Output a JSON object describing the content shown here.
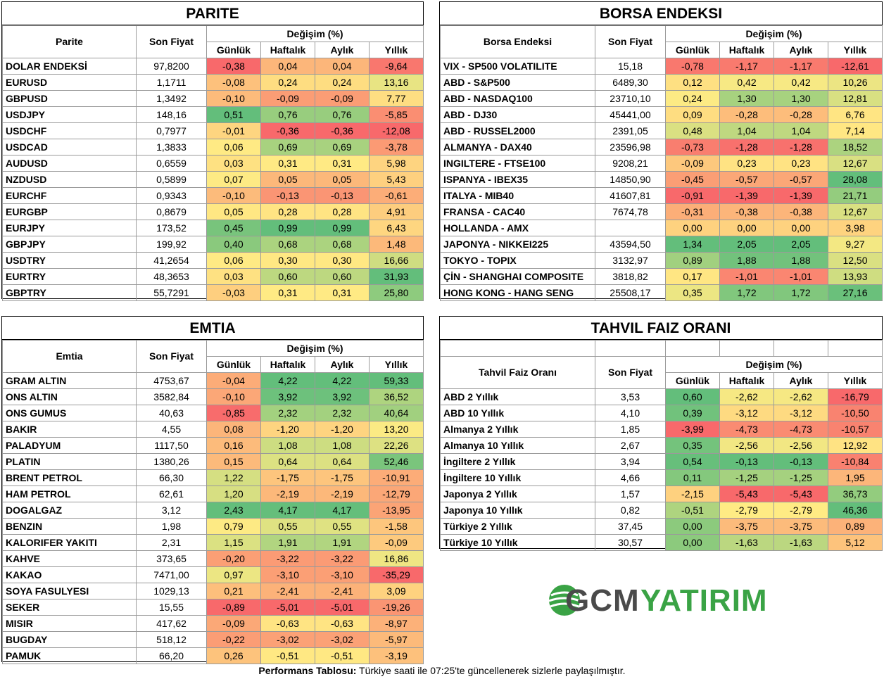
{
  "headers": {
    "son_fiyat": "Son Fiyat",
    "degisim": "Değişim (%)",
    "gunluk": "Günlük",
    "haftalik": "Haftalık",
    "aylik": "Aylık",
    "yillik": "Yıllık"
  },
  "parite": {
    "title": "PARITE",
    "col": "Parite",
    "rows": [
      {
        "n": "DOLAR ENDEKSİ",
        "p": "97,8200",
        "d": "-0,38",
        "w": "0,04",
        "m": "0,04",
        "y": "-9,64"
      },
      {
        "n": "EURUSD",
        "p": "1,1711",
        "d": "-0,08",
        "w": "0,24",
        "m": "0,24",
        "y": "13,16"
      },
      {
        "n": "GBPUSD",
        "p": "1,3492",
        "d": "-0,10",
        "w": "-0,09",
        "m": "-0,09",
        "y": "7,77"
      },
      {
        "n": "USDJPY",
        "p": "148,16",
        "d": "0,51",
        "w": "0,76",
        "m": "0,76",
        "y": "-5,85"
      },
      {
        "n": "USDCHF",
        "p": "0,7977",
        "d": "-0,01",
        "w": "-0,36",
        "m": "-0,36",
        "y": "-12,08"
      },
      {
        "n": "USDCAD",
        "p": "1,3833",
        "d": "0,06",
        "w": "0,69",
        "m": "0,69",
        "y": "-3,78"
      },
      {
        "n": "AUDUSD",
        "p": "0,6559",
        "d": "0,03",
        "w": "0,31",
        "m": "0,31",
        "y": "5,98"
      },
      {
        "n": "NZDUSD",
        "p": "0,5899",
        "d": "0,07",
        "w": "0,05",
        "m": "0,05",
        "y": "5,43"
      },
      {
        "n": "EURCHF",
        "p": "0,9343",
        "d": "-0,10",
        "w": "-0,13",
        "m": "-0,13",
        "y": "-0,61"
      },
      {
        "n": "EURGBP",
        "p": "0,8679",
        "d": "0,05",
        "w": "0,28",
        "m": "0,28",
        "y": "4,91"
      },
      {
        "n": "EURJPY",
        "p": "173,52",
        "d": "0,45",
        "w": "0,99",
        "m": "0,99",
        "y": "6,43"
      },
      {
        "n": "GBPJPY",
        "p": "199,92",
        "d": "0,40",
        "w": "0,68",
        "m": "0,68",
        "y": "1,48"
      },
      {
        "n": "USDTRY",
        "p": "41,2654",
        "d": "0,06",
        "w": "0,30",
        "m": "0,30",
        "y": "16,66"
      },
      {
        "n": "EURTRY",
        "p": "48,3653",
        "d": "0,03",
        "w": "0,60",
        "m": "0,60",
        "y": "31,93"
      },
      {
        "n": "GBPTRY",
        "p": "55,7291",
        "d": "-0,03",
        "w": "0,31",
        "m": "0,31",
        "y": "25,80"
      }
    ]
  },
  "borsa": {
    "title": "BORSA ENDEKSI",
    "col": "Borsa Endeksi",
    "rows": [
      {
        "n": "VIX  - SP500 VOLATILITE",
        "p": "15,18",
        "d": "-0,78",
        "w": "-1,17",
        "m": "-1,17",
        "y": "-12,61"
      },
      {
        "n": "ABD - S&P500",
        "p": "6489,30",
        "d": "0,12",
        "w": "0,42",
        "m": "0,42",
        "y": "10,26"
      },
      {
        "n": "ABD - NASDAQ100",
        "p": "23710,10",
        "d": "0,24",
        "w": "1,30",
        "m": "1,30",
        "y": "12,81"
      },
      {
        "n": "ABD - DJ30",
        "p": "45441,00",
        "d": "0,09",
        "w": "-0,28",
        "m": "-0,28",
        "y": "6,76"
      },
      {
        "n": "ABD - RUSSEL2000",
        "p": "2391,05",
        "d": "0,48",
        "w": "1,04",
        "m": "1,04",
        "y": "7,14"
      },
      {
        "n": "ALMANYA - DAX40",
        "p": "23596,98",
        "d": "-0,73",
        "w": "-1,28",
        "m": "-1,28",
        "y": "18,52"
      },
      {
        "n": "INGILTERE - FTSE100",
        "p": "9208,21",
        "d": "-0,09",
        "w": "0,23",
        "m": "0,23",
        "y": "12,67"
      },
      {
        "n": "ISPANYA - IBEX35",
        "p": "14850,90",
        "d": "-0,45",
        "w": "-0,57",
        "m": "-0,57",
        "y": "28,08"
      },
      {
        "n": "ITALYA - MIB40",
        "p": "41607,81",
        "d": "-0,91",
        "w": "-1,39",
        "m": "-1,39",
        "y": "21,71"
      },
      {
        "n": "FRANSA - CAC40",
        "p": "7674,78",
        "d": "-0,31",
        "w": "-0,38",
        "m": "-0,38",
        "y": "12,67"
      },
      {
        "n": "HOLLANDA - AMX",
        "p": "",
        "d": "0,00",
        "w": "0,00",
        "m": "0,00",
        "y": "3,98"
      },
      {
        "n": "JAPONYA - NIKKEI225",
        "p": "43594,50",
        "d": "1,34",
        "w": "2,05",
        "m": "2,05",
        "y": "9,27"
      },
      {
        "n": "TOKYO - TOPIX",
        "p": "3132,97",
        "d": "0,89",
        "w": "1,88",
        "m": "1,88",
        "y": "12,50"
      },
      {
        "n": "ÇİN - SHANGHAI COMPOSITE",
        "p": "3818,82",
        "d": "0,17",
        "w": "-1,01",
        "m": "-1,01",
        "y": "13,93"
      },
      {
        "n": "HONG KONG - HANG SENG",
        "p": "25508,17",
        "d": "0,35",
        "w": "1,72",
        "m": "1,72",
        "y": "27,16"
      }
    ]
  },
  "emtia": {
    "title": "EMTIA",
    "col": "Emtia",
    "rows": [
      {
        "n": "GRAM ALTIN",
        "p": "4753,67",
        "d": "-0,04",
        "w": "4,22",
        "m": "4,22",
        "y": "59,33"
      },
      {
        "n": "ONS ALTIN",
        "p": "3582,84",
        "d": "-0,10",
        "w": "3,92",
        "m": "3,92",
        "y": "36,52"
      },
      {
        "n": "ONS GUMUS",
        "p": "40,63",
        "d": "-0,85",
        "w": "2,32",
        "m": "2,32",
        "y": "40,64"
      },
      {
        "n": "BAKIR",
        "p": "4,55",
        "d": "0,08",
        "w": "-1,20",
        "m": "-1,20",
        "y": "13,20"
      },
      {
        "n": "PALADYUM",
        "p": "1117,50",
        "d": "0,16",
        "w": "1,08",
        "m": "1,08",
        "y": "22,26"
      },
      {
        "n": "PLATIN",
        "p": "1380,26",
        "d": "0,15",
        "w": "0,64",
        "m": "0,64",
        "y": "52,46"
      },
      {
        "n": "BRENT PETROL",
        "p": "66,30",
        "d": "1,22",
        "w": "-1,75",
        "m": "-1,75",
        "y": "-10,91"
      },
      {
        "n": "HAM PETROL",
        "p": "62,61",
        "d": "1,20",
        "w": "-2,19",
        "m": "-2,19",
        "y": "-12,79"
      },
      {
        "n": "DOGALGAZ",
        "p": "3,12",
        "d": "2,43",
        "w": "4,17",
        "m": "4,17",
        "y": "-13,95"
      },
      {
        "n": "BENZIN",
        "p": "1,98",
        "d": "0,79",
        "w": "0,55",
        "m": "0,55",
        "y": "-1,58"
      },
      {
        "n": "KALORIFER YAKITI",
        "p": "2,31",
        "d": "1,15",
        "w": "1,91",
        "m": "1,91",
        "y": "-0,09"
      },
      {
        "n": "KAHVE",
        "p": "373,65",
        "d": "-0,20",
        "w": "-3,22",
        "m": "-3,22",
        "y": "16,86"
      },
      {
        "n": "KAKAO",
        "p": "7471,00",
        "d": "0,97",
        "w": "-3,10",
        "m": "-3,10",
        "y": "-35,29"
      },
      {
        "n": "SOYA FASULYESI",
        "p": "1029,13",
        "d": "0,21",
        "w": "-2,41",
        "m": "-2,41",
        "y": "3,09"
      },
      {
        "n": "SEKER",
        "p": "15,55",
        "d": "-0,89",
        "w": "-5,01",
        "m": "-5,01",
        "y": "-19,26"
      },
      {
        "n": "MISIR",
        "p": "417,62",
        "d": "-0,09",
        "w": "-0,63",
        "m": "-0,63",
        "y": "-8,97"
      },
      {
        "n": "BUGDAY",
        "p": "518,12",
        "d": "-0,22",
        "w": "-3,02",
        "m": "-3,02",
        "y": "-5,97"
      },
      {
        "n": "PAMUK",
        "p": "66,20",
        "d": "0,26",
        "w": "-0,51",
        "m": "-0,51",
        "y": "-3,19"
      }
    ]
  },
  "tahvil": {
    "title": "TAHVIL FAIZ ORANI",
    "col": "Tahvil Faiz Oranı",
    "rows": [
      {
        "n": "ABD 2 Yıllık",
        "p": "3,53",
        "d": "0,60",
        "w": "-2,62",
        "m": "-2,62",
        "y": "-16,79"
      },
      {
        "n": "ABD 10 Yıllık",
        "p": "4,10",
        "d": "0,39",
        "w": "-3,12",
        "m": "-3,12",
        "y": "-10,50"
      },
      {
        "n": "Almanya 2 Yıllık",
        "p": "1,85",
        "d": "-3,99",
        "w": "-4,73",
        "m": "-4,73",
        "y": "-10,57"
      },
      {
        "n": "Almanya 10 Yıllık",
        "p": "2,67",
        "d": "0,35",
        "w": "-2,56",
        "m": "-2,56",
        "y": "12,92"
      },
      {
        "n": "İngiltere 2 Yıllık",
        "p": "3,94",
        "d": "0,54",
        "w": "-0,13",
        "m": "-0,13",
        "y": "-10,84"
      },
      {
        "n": "İngiltere 10 Yıllık",
        "p": "4,66",
        "d": "0,11",
        "w": "-1,25",
        "m": "-1,25",
        "y": "1,95"
      },
      {
        "n": "Japonya 2 Yıllık",
        "p": "1,57",
        "d": "-2,15",
        "w": "-5,43",
        "m": "-5,43",
        "y": "36,73"
      },
      {
        "n": "Japonya 10 Yıllık",
        "p": "0,82",
        "d": "-0,51",
        "w": "-2,79",
        "m": "-2,79",
        "y": "46,36"
      },
      {
        "n": "Türkiye 2 Yıllık",
        "p": "37,45",
        "d": "0,00",
        "w": "-3,75",
        "m": "-3,75",
        "y": "0,89"
      },
      {
        "n": "Türkiye 10 Yıllık",
        "p": "30,57",
        "d": "0,00",
        "w": "-1,63",
        "m": "-1,63",
        "y": "5,12"
      }
    ]
  },
  "logo": {
    "gcm": "GCM",
    "yatirim": "YATIRIM"
  },
  "footer": {
    "bold": "Performans Tablosu:",
    "text": " Türkiye saati ile 07:25'te güncellenerek sizlerle paylaşılmıştır."
  },
  "colors": {
    "red": "#f8696b",
    "yellow": "#ffeb84",
    "green": "#63be7b"
  }
}
